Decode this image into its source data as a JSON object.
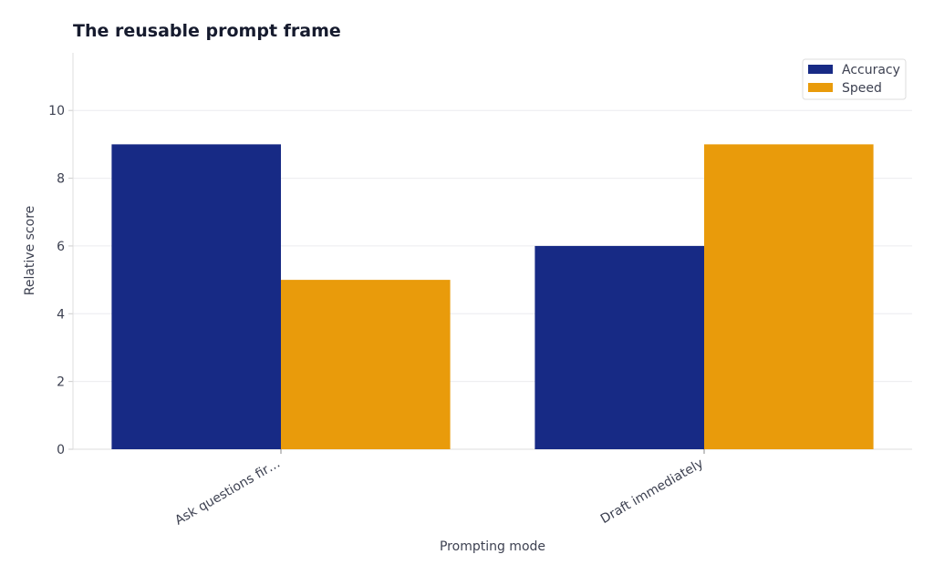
{
  "chart_data": {
    "type": "bar",
    "title": "The reusable prompt frame",
    "x_label": "Prompting mode",
    "y_label": "Relative score",
    "categories": [
      "Ask questions fir…",
      "Draft immediately"
    ],
    "series": [
      {
        "name": "Accuracy",
        "color": "#172a85",
        "values": [
          9,
          6
        ]
      },
      {
        "name": "Speed",
        "color": "#e99b0b",
        "values": [
          5,
          9
        ]
      }
    ],
    "ylim": [
      0,
      11.7
    ],
    "yticks": [
      0,
      2,
      4,
      6,
      8,
      10
    ],
    "grid": true,
    "legend": "upper right"
  }
}
